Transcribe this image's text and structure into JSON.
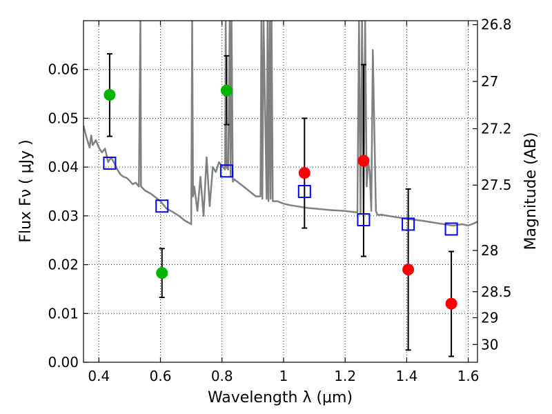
{
  "chart_data": {
    "type": "scatter",
    "title": "",
    "xlabel": "Wavelength  λ (μm)",
    "ylabel": "Flux  Fν  ( μJy )",
    "y2label": "Magnitude (AB)",
    "xlim": [
      0.35,
      1.63
    ],
    "ylim": [
      0.0,
      0.07
    ],
    "grid": true,
    "x_ticks": [
      0.4,
      0.6,
      0.8,
      1.0,
      1.2,
      1.4,
      1.6
    ],
    "x_tick_labels": [
      "0.4",
      "0.6",
      "0.8",
      "1",
      "1.2",
      "1.4",
      "1.6"
    ],
    "y_ticks": [
      0.0,
      0.01,
      0.02,
      0.03,
      0.04,
      0.05,
      0.06
    ],
    "y_tick_labels": [
      "0.00",
      "0.01",
      "0.02",
      "0.03",
      "0.04",
      "0.05",
      "0.06"
    ],
    "y2_ticks": [
      26.8,
      27,
      27.2,
      27.5,
      28,
      28.5,
      29,
      30
    ],
    "y2_tick_labels": [
      "26.8",
      "27",
      "27.2",
      "27.5",
      "28",
      "28.5",
      "29",
      "30"
    ],
    "series": [
      {
        "marker": "circle",
        "color": "#00b400",
        "x": [
          0.435,
          0.605,
          0.815
        ],
        "y": [
          0.0548,
          0.0183,
          0.0557
        ],
        "yerr_low": [
          0.0463,
          0.0133,
          0.0487
        ],
        "yerr_high": [
          0.0632,
          0.0233,
          0.0628
        ]
      },
      {
        "marker": "circle",
        "color": "#ff0000",
        "x": [
          1.068,
          1.26,
          1.405,
          1.545
        ],
        "y": [
          0.0388,
          0.0413,
          0.019,
          0.012
        ],
        "yerr_low": [
          0.0275,
          0.0217,
          0.0025,
          0.0012
        ],
        "yerr_high": [
          0.05,
          0.061,
          0.0355,
          0.0227
        ]
      },
      {
        "marker": "open-square",
        "color": "#0000ff",
        "x": [
          0.435,
          0.605,
          0.815,
          1.068,
          1.26,
          1.405,
          1.545
        ],
        "y": [
          0.0408,
          0.032,
          0.0392,
          0.035,
          0.0292,
          0.0283,
          0.0273
        ]
      },
      {
        "marker": "line",
        "color": "#808080",
        "x": [
          0.35,
          0.36,
          0.37,
          0.375,
          0.38,
          0.39,
          0.4,
          0.41,
          0.42,
          0.43,
          0.44,
          0.45,
          0.46,
          0.47,
          0.48,
          0.49,
          0.5,
          0.51,
          0.52,
          0.53,
          0.535,
          0.537,
          0.54,
          0.55,
          0.57,
          0.6,
          0.62,
          0.64,
          0.66,
          0.68,
          0.7,
          0.703,
          0.706,
          0.71,
          0.72,
          0.73,
          0.74,
          0.75,
          0.76,
          0.77,
          0.78,
          0.79,
          0.81,
          0.812,
          0.815,
          0.82,
          0.825,
          0.828,
          0.831,
          0.835,
          0.84,
          0.85,
          0.87,
          0.89,
          0.91,
          0.925,
          0.928,
          0.931,
          0.935,
          0.945,
          0.948,
          0.951,
          0.955,
          0.958,
          0.961,
          0.965,
          0.98,
          1.0,
          1.02,
          1.04,
          1.06,
          1.08,
          1.1,
          1.15,
          1.2,
          1.24,
          1.245,
          1.25,
          1.255,
          1.26,
          1.265,
          1.27,
          1.275,
          1.28,
          1.285,
          1.29,
          1.3,
          1.305,
          1.32,
          1.34,
          1.36,
          1.4,
          1.45,
          1.5,
          1.55,
          1.58,
          1.6,
          1.62,
          1.63
        ],
        "y": [
          0.0485,
          0.046,
          0.044,
          0.0465,
          0.0445,
          0.0455,
          0.044,
          0.043,
          0.0438,
          0.041,
          0.042,
          0.0408,
          0.0395,
          0.0385,
          0.038,
          0.0378,
          0.0372,
          0.0365,
          0.0368,
          0.036,
          0.07,
          0.036,
          0.0358,
          0.0352,
          0.0345,
          0.033,
          0.0315,
          0.0308,
          0.03,
          0.029,
          0.0283,
          0.07,
          0.034,
          0.036,
          0.031,
          0.038,
          0.03,
          0.042,
          0.032,
          0.04,
          0.039,
          0.041,
          0.0395,
          0.07,
          0.04,
          0.0395,
          0.07,
          0.038,
          0.07,
          0.037,
          0.0375,
          0.037,
          0.036,
          0.035,
          0.034,
          0.034,
          0.07,
          0.0335,
          0.07,
          0.0335,
          0.07,
          0.033,
          0.07,
          0.0335,
          0.07,
          0.033,
          0.033,
          0.0325,
          0.0322,
          0.032,
          0.0318,
          0.0316,
          0.0315,
          0.0312,
          0.031,
          0.0307,
          0.07,
          0.0306,
          0.07,
          0.0305,
          0.07,
          0.036,
          0.041,
          0.039,
          0.031,
          0.064,
          0.031,
          0.0302,
          0.0302,
          0.03,
          0.0298,
          0.0294,
          0.029,
          0.0285,
          0.028,
          0.0283,
          0.028,
          0.0285,
          0.0288
        ]
      }
    ]
  }
}
